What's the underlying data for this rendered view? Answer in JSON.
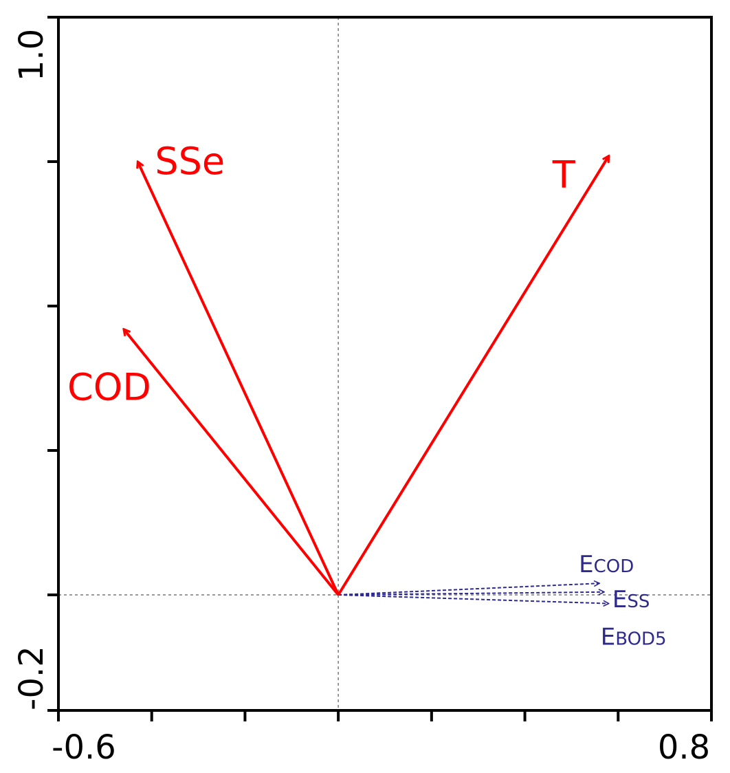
{
  "chart_data": {
    "type": "biplot",
    "xlim": [
      -0.6,
      0.8
    ],
    "ylim": [
      -0.2,
      1.0
    ],
    "x_tick_labels": [
      "-0.6",
      "0.8"
    ],
    "y_tick_labels": [
      "-0.2",
      "1.0"
    ],
    "x_ticks": [
      -0.6,
      -0.4,
      -0.2,
      0.0,
      0.2,
      0.4,
      0.6,
      0.8
    ],
    "y_ticks": [
      -0.2,
      0.0,
      0.25,
      0.5,
      0.75,
      1.0
    ],
    "grid": false,
    "zero_lines": true,
    "colors": {
      "environmental": "#ff0000",
      "response": "#2e2a8c",
      "axis": "#000000",
      "zero_line": "#777777"
    },
    "environmental_vectors": [
      {
        "name": "SSe",
        "label_main": "SSe",
        "label_sub": "",
        "x": -0.43,
        "y": 0.75
      },
      {
        "name": "T",
        "label_main": "T",
        "label_sub": "",
        "x": 0.58,
        "y": 0.76
      },
      {
        "name": "COD",
        "label_main": "COD",
        "label_sub": "",
        "x": -0.46,
        "y": 0.46
      }
    ],
    "response_vectors": [
      {
        "name": "ECOD",
        "label_main": "E",
        "label_sub": "COD",
        "x": 0.56,
        "y": 0.02
      },
      {
        "name": "ESS",
        "label_main": "E",
        "label_sub": "SS",
        "x": 0.57,
        "y": 0.005
      },
      {
        "name": "EBOD5",
        "label_main": "E",
        "label_sub": "BOD5",
        "x": 0.58,
        "y": -0.015
      }
    ]
  }
}
